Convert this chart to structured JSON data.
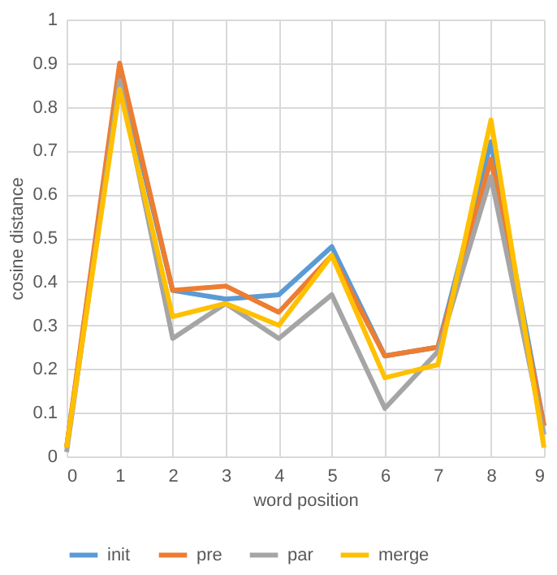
{
  "chart_data": {
    "type": "line",
    "xlabel": "word position",
    "ylabel": "cosine distance",
    "x": [
      0,
      1,
      2,
      3,
      4,
      5,
      6,
      7,
      8,
      9
    ],
    "xlim": [
      0,
      9
    ],
    "xticks": [
      0,
      1,
      2,
      3,
      4,
      5,
      6,
      7,
      8,
      9
    ],
    "ylim": [
      0,
      1
    ],
    "yticks": [
      0,
      0.1,
      0.2,
      0.3,
      0.4,
      0.5,
      0.6,
      0.7,
      0.8,
      0.9,
      1
    ],
    "grid": true,
    "legend": "bottom",
    "marker": "none",
    "line_style": "solid",
    "series": [
      {
        "name": "init",
        "color": "#5b9bd5",
        "values": [
          0.02,
          0.88,
          0.38,
          0.36,
          0.37,
          0.48,
          0.23,
          0.25,
          0.72,
          0.07
        ]
      },
      {
        "name": "pre",
        "color": "#ed7d31",
        "values": [
          0.02,
          0.9,
          0.38,
          0.39,
          0.33,
          0.46,
          0.23,
          0.25,
          0.68,
          0.07
        ]
      },
      {
        "name": "par",
        "color": "#a5a5a5",
        "values": [
          0.01,
          0.86,
          0.27,
          0.35,
          0.27,
          0.37,
          0.11,
          0.24,
          0.64,
          0.05
        ]
      },
      {
        "name": "merge",
        "color": "#ffc000",
        "values": [
          0.02,
          0.84,
          0.32,
          0.35,
          0.3,
          0.46,
          0.18,
          0.21,
          0.77,
          0.02
        ]
      }
    ]
  }
}
